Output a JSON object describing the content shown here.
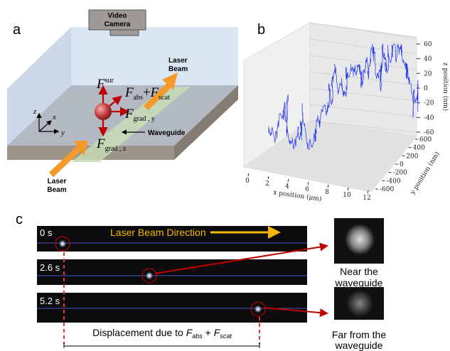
{
  "panel_a": {
    "label": "a",
    "camera": [
      "Video",
      "Camera"
    ],
    "laser_beam_top": [
      "Laser",
      "Beam"
    ],
    "laser_beam_bottom": [
      "Laser",
      "Beam"
    ],
    "waveguide": "Waveguide",
    "axes": {
      "z": "z",
      "x": "x",
      "y": "y"
    },
    "forces": {
      "surface": {
        "symbol": "F",
        "sub": "sur"
      },
      "abs": {
        "symbol": "F",
        "sub": "abs"
      },
      "plus": "+",
      "scat": {
        "symbol": "F",
        "sub": "scat"
      },
      "grad_y": {
        "symbol": "F",
        "sub": "grad , y"
      },
      "grad_z": {
        "symbol": "F",
        "sub": "grad , z"
      }
    }
  },
  "panel_b": {
    "label": "b",
    "x_label": "x position (μm)",
    "y_label": "y position (nm)",
    "z_label": "z position (nm)",
    "xlim": [
      0,
      12
    ],
    "xticks": [
      0,
      2,
      4,
      6,
      8,
      10,
      12
    ],
    "ylim": [
      -600,
      600
    ],
    "yticks": [
      -600,
      -400,
      -200,
      0,
      200,
      400,
      600
    ],
    "zlim": [
      -60,
      60
    ],
    "zticks": [
      -60,
      -40,
      -20,
      0,
      20,
      40,
      60
    ]
  },
  "panel_c": {
    "label": "c",
    "direction": "Laser Beam Direction",
    "frames": [
      "0 s",
      "2.6 s",
      "5.2 s"
    ],
    "near": [
      "Near the",
      "waveguide"
    ],
    "far": [
      "Far from the",
      "waveguide"
    ],
    "displacement": "Displacement due to",
    "f_abs": {
      "symbol": "F",
      "sub": "abs"
    },
    "plus": "+",
    "f_scat": {
      "symbol": "F",
      "sub": "scat"
    }
  }
}
